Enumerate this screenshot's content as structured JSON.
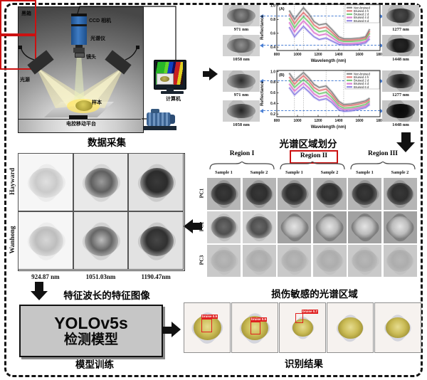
{
  "acquisition": {
    "title": "数据采集",
    "labels": {
      "black_box": "黑箱",
      "ccd_camera": "CCD 相机",
      "spectrometer": "光谱仪",
      "lens": "镜头",
      "light_source": "光源",
      "sample": "样本",
      "platform": "电控移动平台",
      "computer": "计算机"
    }
  },
  "spectral": {
    "title": "光谱区域划分",
    "groups": [
      {
        "panel": "(A)",
        "left_images": [
          {
            "label": "971 nm"
          },
          {
            "label": "1058 nm"
          }
        ],
        "right_images": [
          {
            "label": "1277 nm"
          },
          {
            "label": "1448 nm"
          }
        ]
      },
      {
        "panel": "(B)",
        "left_images": [
          {
            "label": "971 nm"
          },
          {
            "label": "1058 nm"
          }
        ],
        "right_images": [
          {
            "label": "1277 nm"
          },
          {
            "label": "1448 nm"
          }
        ]
      }
    ]
  },
  "chart_data": [
    {
      "type": "line",
      "panel_label": "(A)",
      "xlabel": "Wavelength (nm)",
      "ylabel": "Reflectance",
      "xlim": [
        800,
        1800
      ],
      "ylim": [
        0.35,
        1.02
      ],
      "xticks": [
        800,
        1000,
        1200,
        1400,
        1600,
        1800
      ],
      "yticks": [
        0.4,
        0.6,
        0.8,
        1.0
      ],
      "marked_wavelengths": [
        971,
        1058,
        1277,
        1448
      ],
      "legend_position": "top-right",
      "grid": false,
      "x": [
        920,
        971,
        1010,
        1058,
        1110,
        1160,
        1210,
        1277,
        1330,
        1400,
        1448,
        1520,
        1600,
        1660,
        1700
      ],
      "series": [
        {
          "name": "Non-bruised",
          "color": "#7a7a7a",
          "values": [
            0.93,
            0.8,
            0.88,
            0.97,
            0.88,
            0.77,
            0.72,
            0.74,
            0.66,
            0.55,
            0.52,
            0.52,
            0.53,
            0.55,
            0.66
          ]
        },
        {
          "name": "Bruised 4 h",
          "color": "#e06c6c",
          "values": [
            0.88,
            0.74,
            0.82,
            0.9,
            0.82,
            0.72,
            0.67,
            0.69,
            0.62,
            0.52,
            0.5,
            0.5,
            0.51,
            0.53,
            0.63
          ]
        },
        {
          "name": "Bruised 2 d",
          "color": "#67c667",
          "values": [
            0.82,
            0.68,
            0.76,
            0.84,
            0.76,
            0.67,
            0.62,
            0.64,
            0.58,
            0.5,
            0.48,
            0.48,
            0.49,
            0.51,
            0.6
          ]
        },
        {
          "name": "Bruised 4 d",
          "color": "#da6ccc",
          "values": [
            0.76,
            0.62,
            0.7,
            0.78,
            0.7,
            0.61,
            0.57,
            0.59,
            0.54,
            0.47,
            0.45,
            0.45,
            0.46,
            0.48,
            0.56
          ]
        },
        {
          "name": "Bruised 6 d",
          "color": "#8277e0",
          "values": [
            0.69,
            0.55,
            0.62,
            0.7,
            0.62,
            0.55,
            0.51,
            0.53,
            0.49,
            0.44,
            0.43,
            0.43,
            0.44,
            0.46,
            0.52
          ]
        }
      ]
    },
    {
      "type": "line",
      "panel_label": "(B)",
      "xlabel": "Wavelength (nm)",
      "ylabel": "Reflectance",
      "xlim": [
        800,
        1800
      ],
      "ylim": [
        0.15,
        1.02
      ],
      "xticks": [
        800,
        1000,
        1200,
        1400,
        1600,
        1800
      ],
      "yticks": [
        0.2,
        0.4,
        0.6,
        0.8,
        1.0
      ],
      "marked_wavelengths": [
        971,
        1058,
        1277,
        1448
      ],
      "legend_position": "top-right",
      "grid": false,
      "x": [
        920,
        971,
        1010,
        1058,
        1110,
        1160,
        1210,
        1277,
        1330,
        1400,
        1448,
        1520,
        1600,
        1660,
        1700
      ],
      "series": [
        {
          "name": "Non-bruised",
          "color": "#7a7a7a",
          "values": [
            0.97,
            0.83,
            0.9,
            0.98,
            0.88,
            0.76,
            0.7,
            0.73,
            0.62,
            0.44,
            0.38,
            0.39,
            0.42,
            0.45,
            0.5
          ]
        },
        {
          "name": "Bruised 4 h",
          "color": "#e06c6c",
          "values": [
            0.9,
            0.76,
            0.84,
            0.92,
            0.82,
            0.7,
            0.64,
            0.67,
            0.57,
            0.4,
            0.35,
            0.36,
            0.39,
            0.42,
            0.47
          ]
        },
        {
          "name": "Bruised 2 d",
          "color": "#67c667",
          "values": [
            0.84,
            0.7,
            0.77,
            0.85,
            0.76,
            0.64,
            0.58,
            0.61,
            0.52,
            0.36,
            0.31,
            0.32,
            0.35,
            0.38,
            0.44
          ]
        },
        {
          "name": "Bruised 4 d",
          "color": "#da6ccc",
          "values": [
            0.77,
            0.63,
            0.7,
            0.78,
            0.69,
            0.58,
            0.52,
            0.55,
            0.47,
            0.32,
            0.28,
            0.29,
            0.32,
            0.35,
            0.41
          ]
        },
        {
          "name": "Bruised 6 d",
          "color": "#8277e0",
          "values": [
            0.7,
            0.56,
            0.63,
            0.71,
            0.62,
            0.52,
            0.46,
            0.49,
            0.42,
            0.28,
            0.25,
            0.26,
            0.29,
            0.32,
            0.38
          ]
        }
      ]
    }
  ],
  "regions": {
    "title": "损伤敏感的光谱区域",
    "headers": [
      "Region I",
      "Region II",
      "Region III"
    ],
    "highlighted": "Region II",
    "sample_labels": [
      "Sample 1",
      "Sample 2"
    ],
    "pc_labels": [
      "PC1",
      "PC2",
      "PC3"
    ],
    "highlight_cells": [
      [
        1,
        2
      ],
      [
        1,
        3
      ]
    ]
  },
  "features": {
    "title": "特征波长的特征图像",
    "row_labels": [
      "Hayward",
      "Wanhong"
    ],
    "wavelengths": [
      "924.87 nm",
      "1051.03nm",
      "1190.47nm"
    ]
  },
  "model": {
    "title": "模型训练",
    "line1": "YOLOv5s",
    "line2": "检测模型"
  },
  "results": {
    "title": "识别结果",
    "detections": [
      {
        "label": "bruise 0.9"
      },
      {
        "label": "bruise 0.9"
      },
      {
        "label": "bruise 0.7"
      },
      {
        "label": ""
      },
      {
        "label": ""
      }
    ]
  },
  "colors": {
    "highlight_red": "#cc1111",
    "detection_red": "#e02020",
    "connector_blue": "#4a7fd4"
  }
}
